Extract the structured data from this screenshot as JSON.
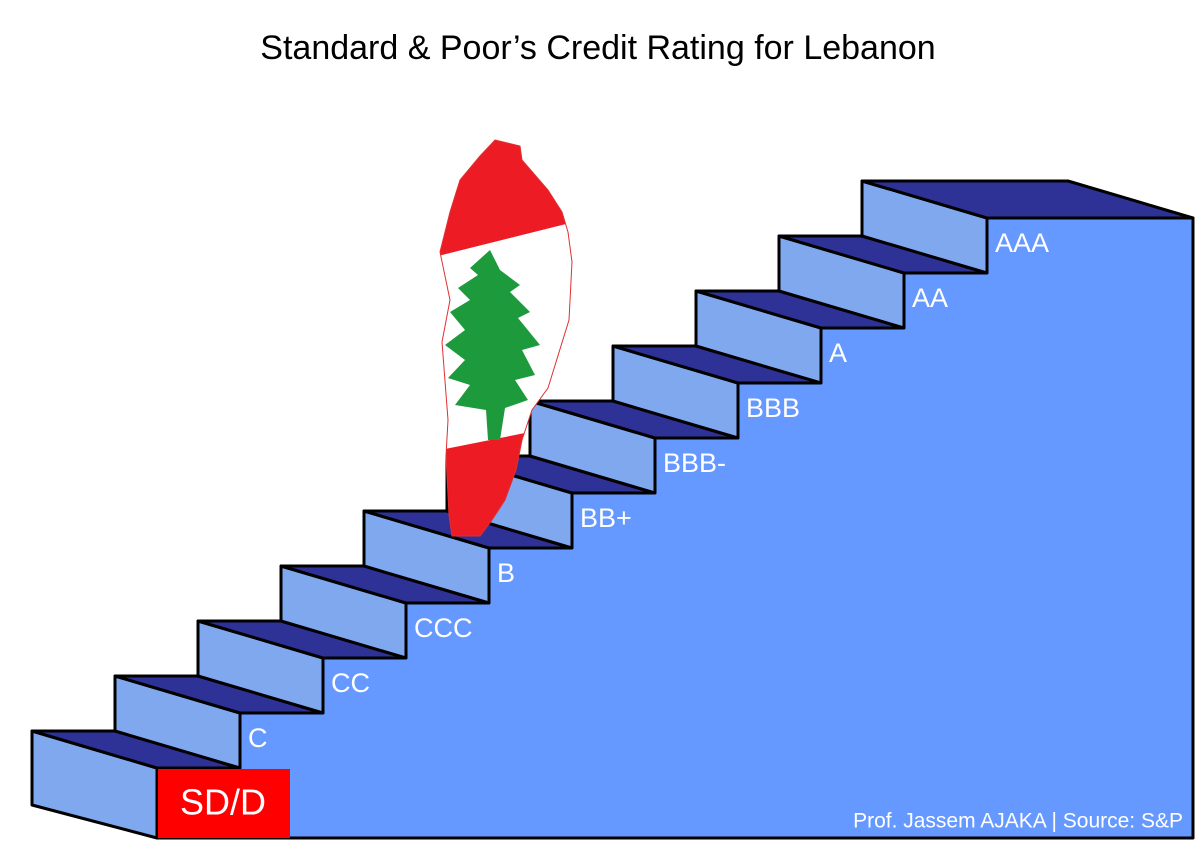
{
  "title": "Standard & Poor’s Credit Rating for Lebanon",
  "ratings": [
    "SD/D",
    "C",
    "CC",
    "CCC",
    "B",
    "BB+",
    "BBB-",
    "BBB",
    "A",
    "AA",
    "AAA"
  ],
  "credit": "Prof. Jassem AJAKA | Source: S&P"
}
